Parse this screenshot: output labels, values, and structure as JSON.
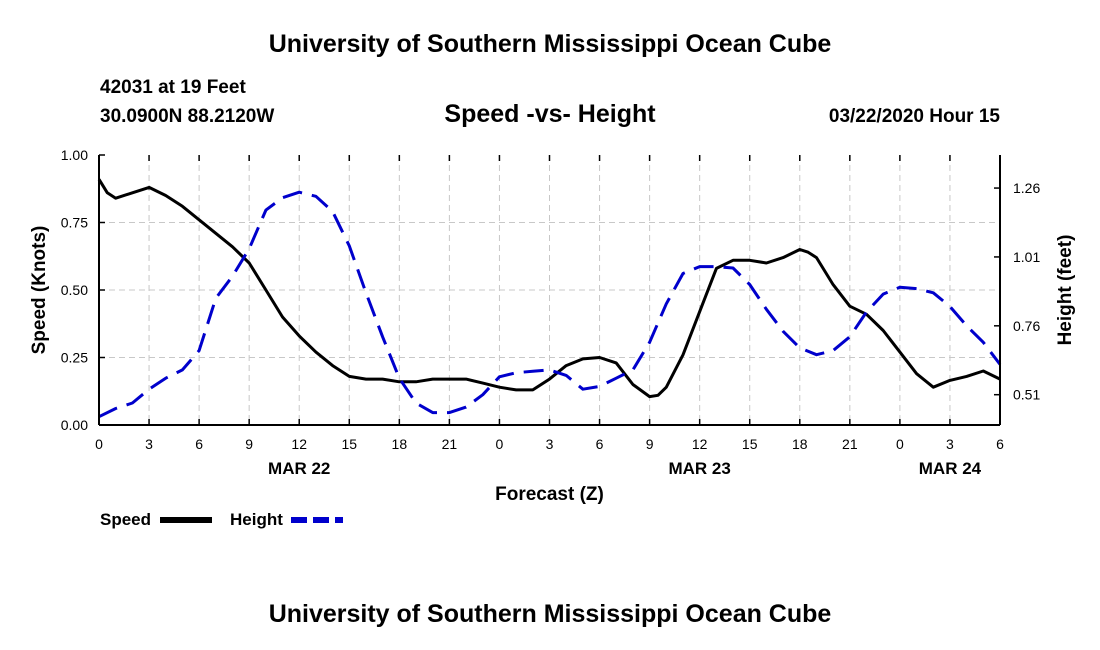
{
  "header": {
    "title": "University of Southern Mississippi Ocean Cube",
    "station": "42031 at 19 Feet",
    "coordinates": "30.0900N 88.2120W",
    "subtitle": "Speed -vs- Height",
    "date": "03/22/2020 Hour 15"
  },
  "footer": {
    "title": "University of Southern Mississippi Ocean Cube"
  },
  "chart_data": {
    "type": "line",
    "xlabel": "Forecast (Z)",
    "ylabel": "Speed (Knots)",
    "y2label": "Height (feet)",
    "x_range_hours": [
      0,
      54
    ],
    "x_ticks": [
      {
        "hour": 0,
        "label": "0"
      },
      {
        "hour": 3,
        "label": "3"
      },
      {
        "hour": 6,
        "label": "6"
      },
      {
        "hour": 9,
        "label": "9"
      },
      {
        "hour": 12,
        "label": "12"
      },
      {
        "hour": 15,
        "label": "15"
      },
      {
        "hour": 18,
        "label": "18"
      },
      {
        "hour": 21,
        "label": "21"
      },
      {
        "hour": 24,
        "label": "0"
      },
      {
        "hour": 27,
        "label": "3"
      },
      {
        "hour": 30,
        "label": "6"
      },
      {
        "hour": 33,
        "label": "9"
      },
      {
        "hour": 36,
        "label": "12"
      },
      {
        "hour": 39,
        "label": "15"
      },
      {
        "hour": 42,
        "label": "18"
      },
      {
        "hour": 45,
        "label": "21"
      },
      {
        "hour": 48,
        "label": "0"
      },
      {
        "hour": 51,
        "label": "3"
      },
      {
        "hour": 54,
        "label": "6"
      }
    ],
    "date_labels": [
      {
        "hour": 12,
        "label": "MAR 22"
      },
      {
        "hour": 36,
        "label": "MAR 23"
      },
      {
        "hour": 51,
        "label": "MAR 24"
      }
    ],
    "ylim": [
      0,
      1
    ],
    "y_ticks": [
      "0.00",
      "0.25",
      "0.50",
      "0.75",
      "1.00"
    ],
    "y2lim": [
      0.4,
      1.38
    ],
    "y2_ticks": [
      "0.51",
      "0.76",
      "1.01",
      "1.26"
    ],
    "grid": true,
    "legend_position": "bottom-left",
    "series": [
      {
        "name": "Speed",
        "axis": "left",
        "color": "#000000",
        "style": "solid",
        "x": [
          0,
          0.5,
          1,
          2,
          3,
          4,
          5,
          6,
          7,
          8,
          9,
          10,
          11,
          12,
          13,
          14,
          15,
          16,
          17,
          18,
          19,
          20,
          21,
          22,
          23,
          24,
          25,
          26,
          27,
          28,
          29,
          30,
          31,
          32,
          33,
          33.5,
          34,
          35,
          36,
          37,
          38,
          39,
          40,
          41,
          42,
          42.5,
          43,
          44,
          45,
          46,
          47,
          48,
          49,
          50,
          51,
          52,
          53,
          54
        ],
        "values": [
          0.91,
          0.86,
          0.84,
          0.86,
          0.88,
          0.85,
          0.81,
          0.76,
          0.71,
          0.66,
          0.6,
          0.5,
          0.4,
          0.33,
          0.27,
          0.22,
          0.18,
          0.17,
          0.17,
          0.16,
          0.16,
          0.17,
          0.17,
          0.17,
          0.155,
          0.14,
          0.13,
          0.13,
          0.17,
          0.22,
          0.245,
          0.25,
          0.23,
          0.15,
          0.105,
          0.11,
          0.14,
          0.26,
          0.42,
          0.58,
          0.61,
          0.61,
          0.6,
          0.62,
          0.65,
          0.64,
          0.62,
          0.52,
          0.44,
          0.41,
          0.35,
          0.27,
          0.19,
          0.14,
          0.165,
          0.18,
          0.2,
          0.17
        ]
      },
      {
        "name": "Height",
        "axis": "right",
        "color": "#0000cc",
        "style": "dashed",
        "x": [
          0,
          1,
          2,
          3,
          4,
          5,
          6,
          7,
          8,
          9,
          10,
          11,
          12,
          13,
          14,
          15,
          16,
          17,
          18,
          19,
          20,
          21,
          22,
          23,
          24,
          25,
          26,
          27,
          28,
          29,
          30,
          31,
          32,
          33,
          34,
          35,
          36,
          37,
          38,
          39,
          40,
          41,
          42,
          43,
          44,
          45,
          46,
          47,
          48,
          49,
          50,
          51,
          52,
          53,
          54
        ],
        "values": [
          0.43,
          0.46,
          0.48,
          0.53,
          0.57,
          0.6,
          0.67,
          0.86,
          0.94,
          1.04,
          1.18,
          1.225,
          1.245,
          1.23,
          1.175,
          1.05,
          0.88,
          0.72,
          0.57,
          0.48,
          0.445,
          0.445,
          0.465,
          0.51,
          0.575,
          0.59,
          0.595,
          0.6,
          0.58,
          0.53,
          0.54,
          0.57,
          0.6,
          0.7,
          0.84,
          0.95,
          0.975,
          0.975,
          0.97,
          0.91,
          0.82,
          0.74,
          0.68,
          0.655,
          0.67,
          0.72,
          0.81,
          0.875,
          0.9,
          0.895,
          0.88,
          0.83,
          0.76,
          0.7,
          0.62
        ]
      }
    ]
  }
}
